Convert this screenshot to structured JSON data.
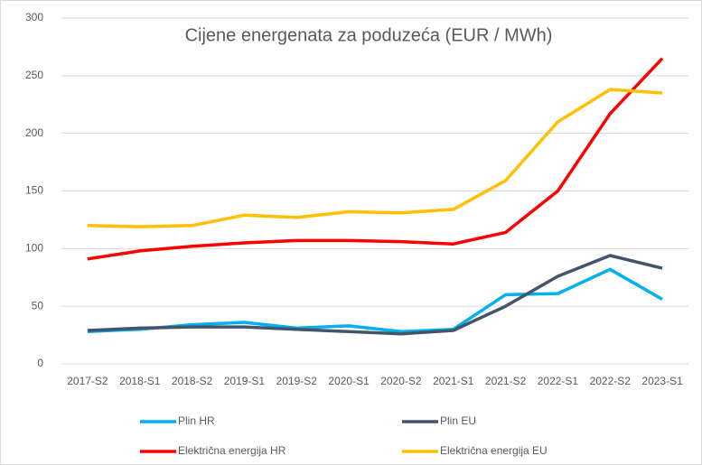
{
  "chart_data": {
    "type": "line",
    "title": "Cijene energenata za poduzeća (EUR / MWh)",
    "categories": [
      "2017-S2",
      "2018-S1",
      "2018-S2",
      "2019-S1",
      "2019-S2",
      "2020-S1",
      "2020-S2",
      "2021-S1",
      "2021-S2",
      "2022-S1",
      "2022-S2",
      "2023-S1"
    ],
    "series": [
      {
        "name": "Plin HR",
        "color": "#00b0f0",
        "values": [
          28,
          30,
          34,
          36,
          31,
          33,
          28,
          30,
          60,
          61,
          82,
          56
        ]
      },
      {
        "name": "Plin EU",
        "color": "#44546a",
        "values": [
          29,
          31,
          32,
          32,
          30,
          28,
          26,
          29,
          50,
          76,
          94,
          83
        ]
      },
      {
        "name": "Električna energija HR",
        "color": "#ff0000",
        "values": [
          91,
          98,
          102,
          105,
          107,
          107,
          106,
          104,
          114,
          150,
          217,
          265
        ]
      },
      {
        "name": "Električna energija EU",
        "color": "#ffc000",
        "values": [
          120,
          119,
          120,
          129,
          127,
          132,
          131,
          134,
          159,
          210,
          238,
          235
        ]
      }
    ],
    "ylim": [
      0,
      300
    ],
    "yticks": [
      0,
      50,
      100,
      150,
      200,
      250,
      300
    ],
    "grid": true
  }
}
